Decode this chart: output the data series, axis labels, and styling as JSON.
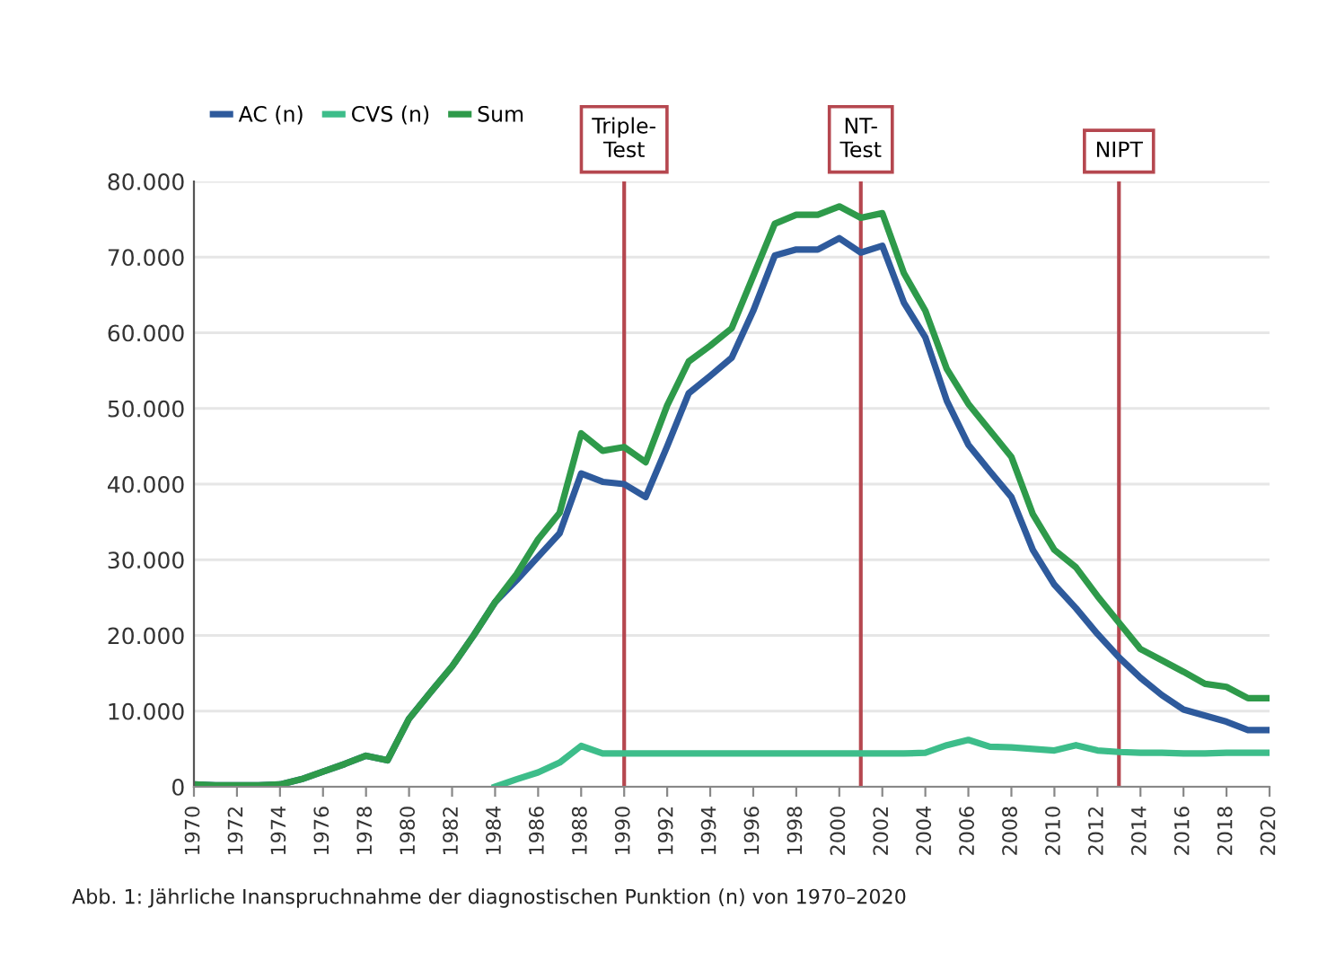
{
  "chart_data": {
    "type": "line",
    "x": [
      1970,
      1971,
      1972,
      1973,
      1974,
      1975,
      1976,
      1977,
      1978,
      1979,
      1980,
      1981,
      1982,
      1983,
      1984,
      1985,
      1986,
      1987,
      1988,
      1989,
      1990,
      1991,
      1992,
      1993,
      1994,
      1995,
      1996,
      1997,
      1998,
      1999,
      2000,
      2001,
      2002,
      2003,
      2004,
      2005,
      2006,
      2007,
      2008,
      2009,
      2010,
      2011,
      2012,
      2013,
      2014,
      2015,
      2016,
      2017,
      2018,
      2019,
      2020
    ],
    "series": [
      {
        "name": "AC (n)",
        "color": "#2e5a9c",
        "values": [
          300,
          200,
          200,
          200,
          300,
          1000,
          2000,
          3000,
          4100,
          3500,
          9000,
          12500,
          15900,
          20000,
          24400,
          27300,
          30400,
          33500,
          41400,
          40300,
          40000,
          38300,
          45000,
          52000,
          54300,
          56700,
          62900,
          70200,
          71000,
          71000,
          72500,
          70600,
          71500,
          64000,
          59400,
          51000,
          45200,
          41700,
          38300,
          31300,
          26700,
          23600,
          20200,
          17100,
          14400,
          12100,
          10200,
          9400,
          8600,
          7500,
          7500
        ]
      },
      {
        "name": "CVS (n)",
        "color": "#3dbd8a",
        "values": [
          null,
          null,
          null,
          null,
          null,
          null,
          null,
          null,
          null,
          null,
          null,
          null,
          null,
          null,
          0,
          1000,
          1900,
          3200,
          5400,
          4400,
          4400,
          4400,
          4400,
          4400,
          4400,
          4400,
          4400,
          4400,
          4400,
          4400,
          4400,
          4400,
          4400,
          4400,
          4500,
          5500,
          6200,
          5300,
          5200,
          5000,
          4800,
          5500,
          4800,
          4600,
          4500,
          4500,
          4400,
          4400,
          4500,
          4500,
          4500
        ]
      },
      {
        "name": "Sum",
        "color": "#2e9a4a",
        "values": [
          300,
          200,
          200,
          200,
          300,
          1000,
          2000,
          3000,
          4100,
          3500,
          9000,
          12500,
          15900,
          20000,
          24400,
          28100,
          32700,
          36200,
          46700,
          44400,
          44900,
          42900,
          50400,
          56200,
          58300,
          60600,
          67500,
          74400,
          75600,
          75600,
          76700,
          75200,
          75800,
          67900,
          62900,
          55200,
          50600,
          47100,
          43600,
          36000,
          31300,
          29000,
          25200,
          21700,
          18200,
          16700,
          15200,
          13600,
          13200,
          11700,
          11700
        ]
      }
    ],
    "xlim": [
      1970,
      2020
    ],
    "xticks": [
      1970,
      1972,
      1974,
      1976,
      1978,
      1980,
      1982,
      1984,
      1986,
      1988,
      1990,
      1992,
      1994,
      1996,
      1998,
      2000,
      2002,
      2004,
      2006,
      2008,
      2010,
      2012,
      2014,
      2016,
      2018,
      2020
    ],
    "ylim": [
      0,
      80000
    ],
    "yticks": [
      {
        "value": 0,
        "label": "0"
      },
      {
        "value": 10000,
        "label": "10.000"
      },
      {
        "value": 20000,
        "label": "20.000"
      },
      {
        "value": 30000,
        "label": "30.000"
      },
      {
        "value": 40000,
        "label": "40.000"
      },
      {
        "value": 50000,
        "label": "50.000"
      },
      {
        "value": 60000,
        "label": "60.000"
      },
      {
        "value": 70000,
        "label": "70.000"
      },
      {
        "value": 80000,
        "label": "80.000"
      }
    ],
    "ref_lines": [
      {
        "axis": "x",
        "value": 1990,
        "label": "Triple-\nTest",
        "color": "#b5474f"
      },
      {
        "axis": "x",
        "value": 2001,
        "label": "NT-\nTest",
        "color": "#b5474f"
      },
      {
        "axis": "x",
        "value": 2013,
        "label": "NIPT",
        "color": "#b5474f"
      }
    ],
    "grid": "y",
    "legend": "top left",
    "marker": "none",
    "line_style": "solid",
    "annotations": [
      "Abb. 1: Jährliche Inanspruchnahme der diagnostischen Punktion (n) von 1970–2020"
    ]
  }
}
